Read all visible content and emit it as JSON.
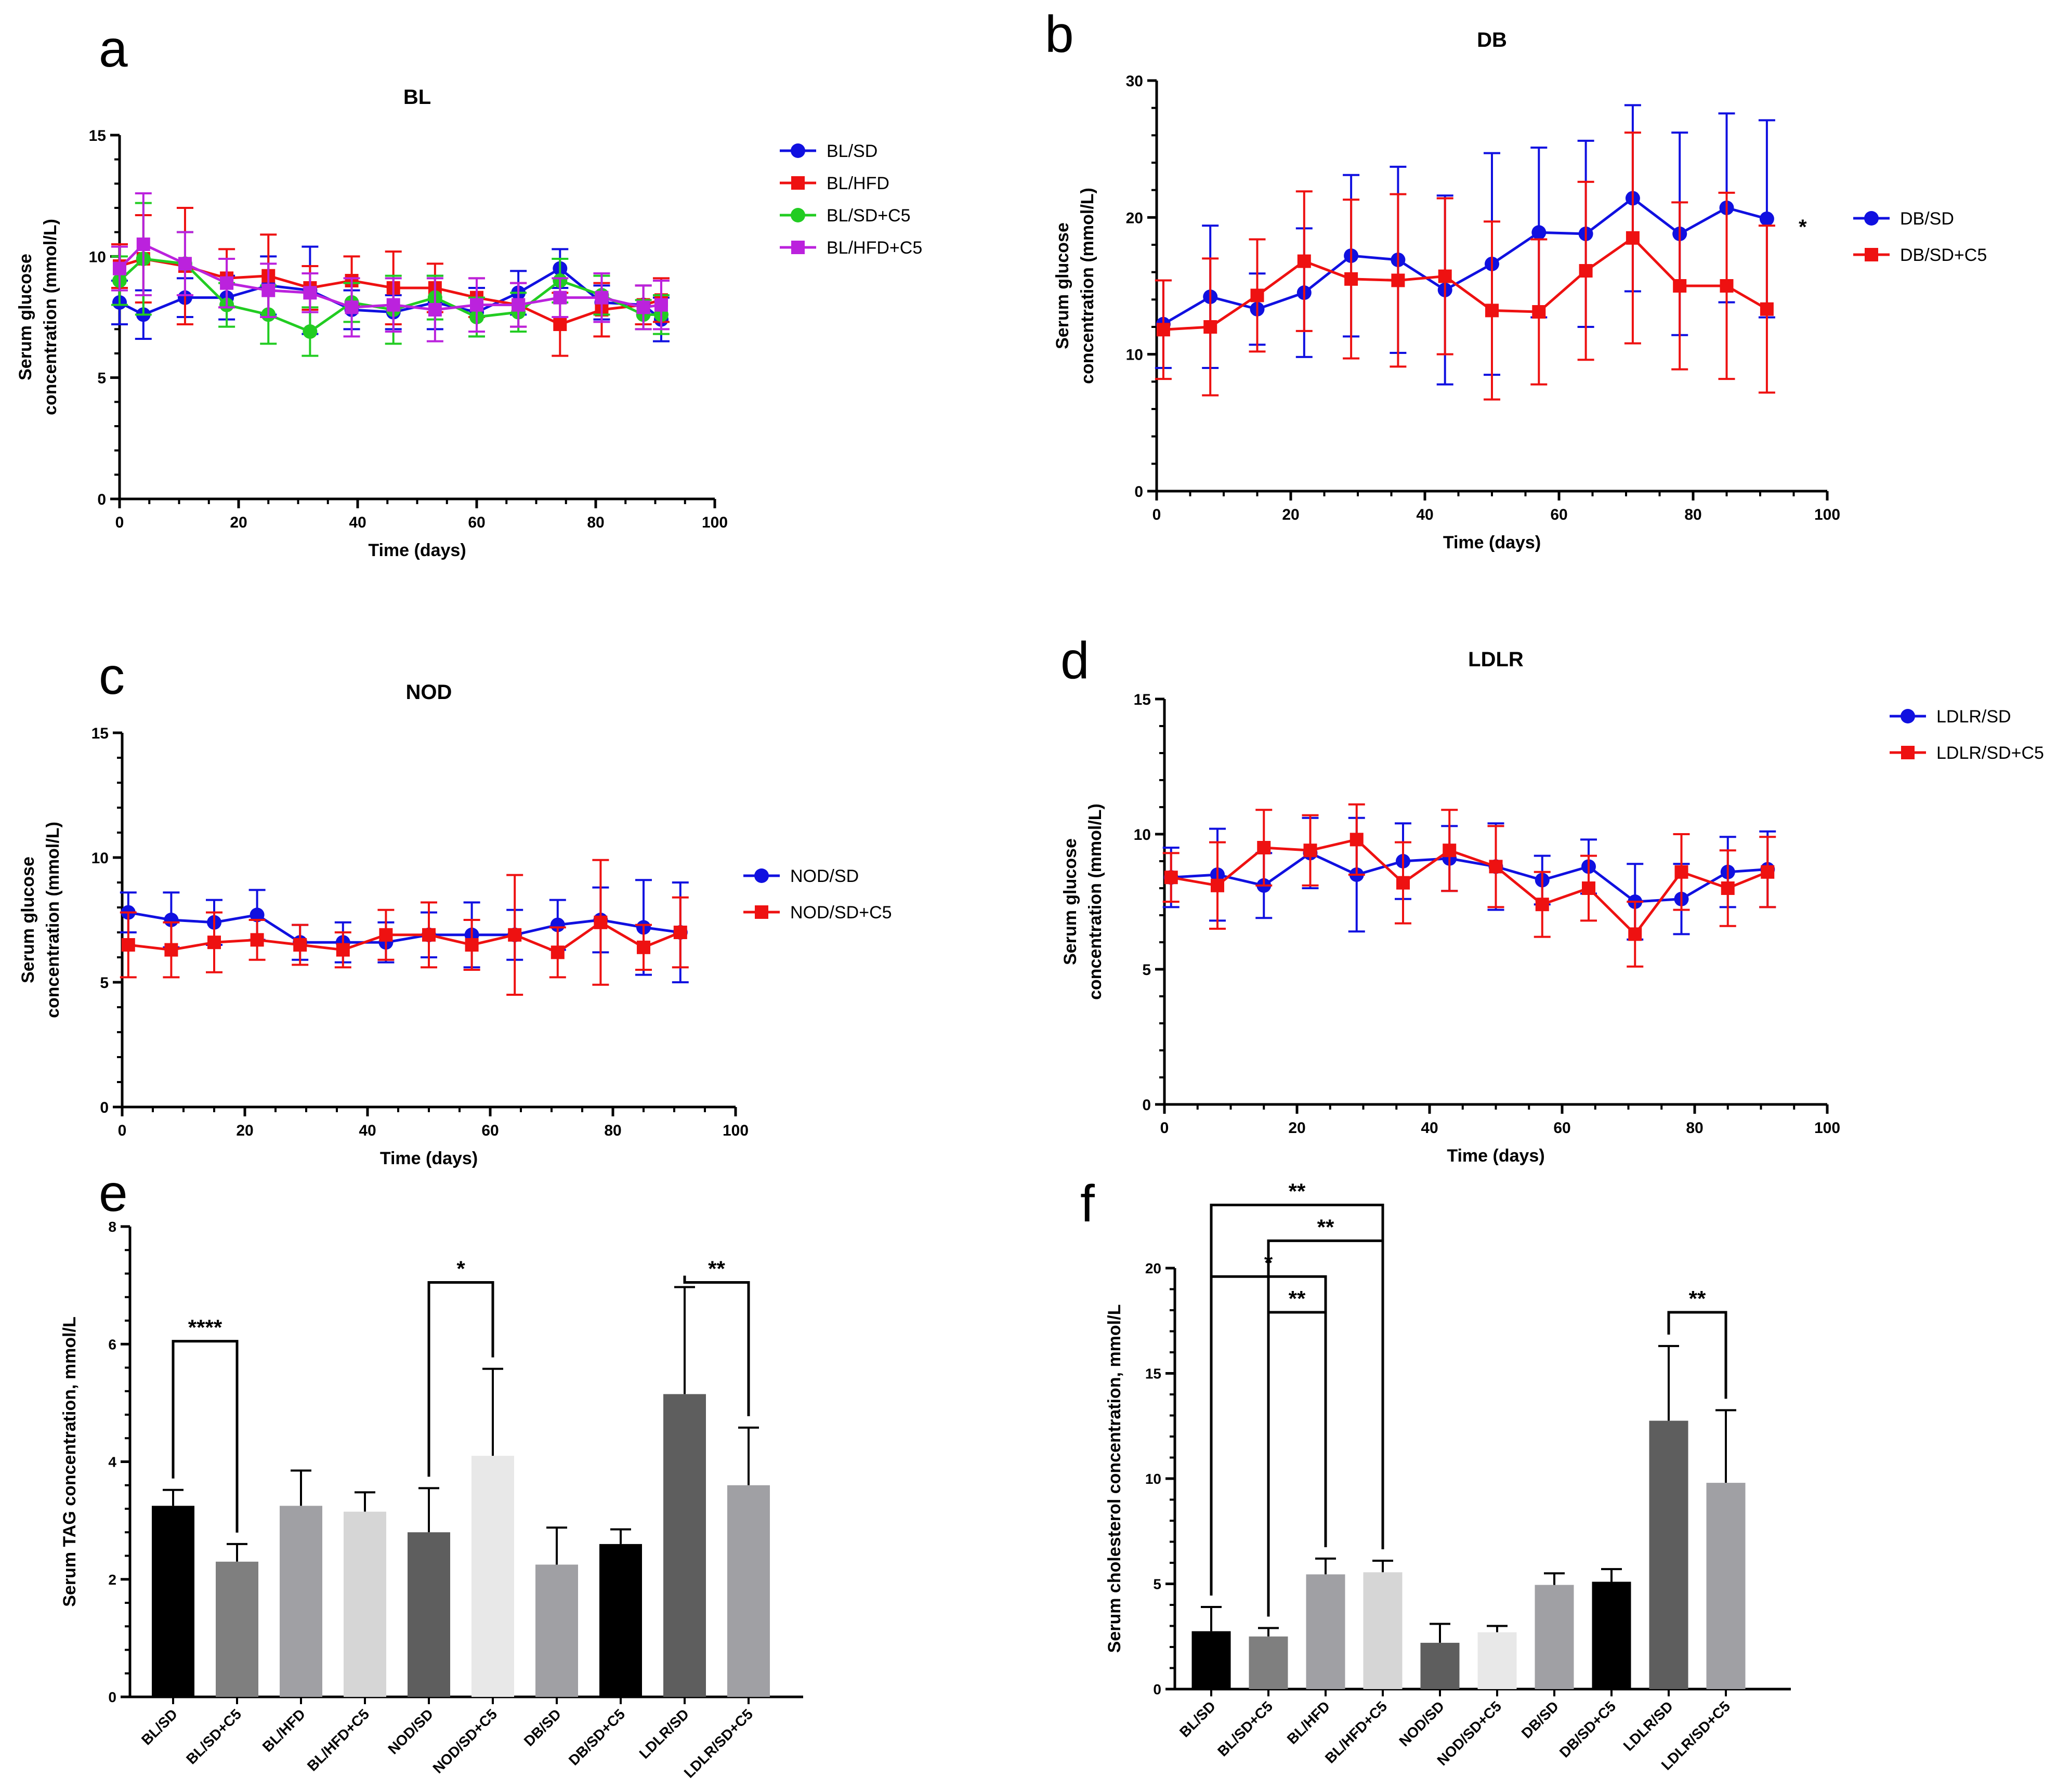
{
  "figure": {
    "panel_letters": [
      "a",
      "b",
      "c",
      "d",
      "e",
      "f"
    ]
  },
  "chart_data": [
    {
      "panel": "a",
      "type": "line",
      "title": "BL",
      "xlabel": "Time (days)",
      "ylabel": "Serum glucose\nconcentration (mmol/L)",
      "xlim": [
        0,
        100
      ],
      "ylim": [
        0,
        15
      ],
      "xticks": [
        0,
        20,
        40,
        60,
        80,
        100
      ],
      "yticks": [
        0,
        5,
        10,
        15
      ],
      "significance": "",
      "series": [
        {
          "name": "BL/SD",
          "color": "#1010e0",
          "marker": "circle",
          "x": [
            0,
            4,
            11,
            18,
            25,
            32,
            39,
            46,
            53,
            60,
            67,
            74,
            81,
            88,
            91
          ],
          "y": [
            8.1,
            7.6,
            8.3,
            8.3,
            8.8,
            8.6,
            7.8,
            7.7,
            8.1,
            7.7,
            8.5,
            9.5,
            8.1,
            8.0,
            7.4
          ],
          "err": [
            0.9,
            1.0,
            0.8,
            0.9,
            1.2,
            1.8,
            0.8,
            0.7,
            1.1,
            1.0,
            0.9,
            0.8,
            0.7,
            0.8,
            0.9
          ]
        },
        {
          "name": "BL/HFD",
          "color": "#ee1111",
          "marker": "square",
          "x": [
            0,
            4,
            11,
            18,
            25,
            32,
            39,
            46,
            53,
            60,
            67,
            74,
            81,
            88,
            91
          ],
          "y": [
            9.6,
            9.9,
            9.6,
            9.1,
            9.2,
            8.7,
            9.0,
            8.7,
            8.7,
            8.3,
            8.0,
            7.2,
            7.8,
            8.0,
            8.2
          ],
          "err": [
            0.9,
            1.8,
            2.4,
            1.2,
            1.7,
            0.9,
            1.0,
            1.5,
            1.0,
            0.8,
            0.9,
            1.3,
            1.1,
            0.8,
            0.9
          ]
        },
        {
          "name": "BL/SD+C5",
          "color": "#22cc22",
          "marker": "circle",
          "x": [
            0,
            4,
            11,
            18,
            25,
            32,
            39,
            46,
            53,
            60,
            67,
            74,
            81,
            88,
            91
          ],
          "y": [
            9.0,
            9.9,
            9.7,
            8.0,
            7.6,
            6.9,
            8.1,
            7.8,
            8.3,
            7.5,
            7.7,
            9.0,
            8.4,
            7.6,
            7.6
          ],
          "err": [
            1.0,
            2.3,
            1.3,
            0.9,
            1.2,
            1.0,
            0.8,
            1.4,
            0.9,
            0.8,
            0.8,
            0.9,
            0.8,
            0.6,
            0.8
          ]
        },
        {
          "name": "BL/HFD+C5",
          "color": "#bb22dd",
          "marker": "square",
          "x": [
            0,
            4,
            11,
            18,
            25,
            32,
            39,
            46,
            53,
            60,
            67,
            74,
            81,
            88,
            91
          ],
          "y": [
            9.5,
            10.5,
            9.7,
            8.9,
            8.6,
            8.5,
            7.9,
            8.0,
            7.8,
            8.0,
            8.0,
            8.3,
            8.3,
            7.9,
            8.0
          ],
          "err": [
            0.9,
            2.1,
            1.3,
            1.0,
            1.1,
            0.8,
            1.2,
            1.1,
            1.3,
            1.1,
            0.9,
            0.8,
            1.0,
            0.9,
            1.0
          ]
        }
      ]
    },
    {
      "panel": "b",
      "type": "line",
      "title": "DB",
      "xlabel": "Time (days)",
      "ylabel": "Serum glucose\nconcentration (mmol/L)",
      "xlim": [
        0,
        100
      ],
      "ylim": [
        0,
        30
      ],
      "xticks": [
        0,
        20,
        40,
        60,
        80,
        100
      ],
      "yticks": [
        0,
        10,
        20,
        30
      ],
      "significance": "*",
      "series": [
        {
          "name": "DB/SD",
          "color": "#1010e0",
          "marker": "circle",
          "x": [
            1,
            8,
            15,
            22,
            29,
            36,
            43,
            50,
            57,
            64,
            71,
            78,
            85,
            91
          ],
          "y": [
            12.2,
            14.2,
            13.3,
            14.5,
            17.2,
            16.9,
            14.7,
            16.6,
            18.9,
            18.8,
            21.4,
            18.8,
            20.7,
            19.9
          ],
          "err": [
            3.2,
            5.2,
            2.6,
            4.7,
            5.9,
            6.8,
            6.9,
            8.1,
            6.2,
            6.8,
            6.8,
            7.4,
            6.9,
            7.2
          ]
        },
        {
          "name": "DB/SD+C5",
          "color": "#ee1111",
          "marker": "square",
          "x": [
            1,
            8,
            15,
            22,
            29,
            36,
            43,
            50,
            57,
            64,
            71,
            78,
            85,
            91
          ],
          "y": [
            11.8,
            12.0,
            14.3,
            16.8,
            15.5,
            15.4,
            15.7,
            13.2,
            13.1,
            16.1,
            18.5,
            15.0,
            15.0,
            13.3
          ],
          "err": [
            3.6,
            5.0,
            4.1,
            5.1,
            5.8,
            6.3,
            5.7,
            6.5,
            5.3,
            6.5,
            7.7,
            6.1,
            6.8,
            6.1
          ]
        }
      ]
    },
    {
      "panel": "c",
      "type": "line",
      "title": "NOD",
      "xlabel": "Time (days)",
      "ylabel": "Serum glucose\nconcentration (mmol/L)",
      "xlim": [
        0,
        100
      ],
      "ylim": [
        0,
        15
      ],
      "xticks": [
        0,
        20,
        40,
        60,
        80,
        100
      ],
      "yticks": [
        0,
        5,
        10,
        15
      ],
      "significance": "",
      "series": [
        {
          "name": "NOD/SD",
          "color": "#1010e0",
          "marker": "circle",
          "x": [
            1,
            8,
            15,
            22,
            29,
            36,
            43,
            50,
            57,
            64,
            71,
            78,
            85,
            91
          ],
          "y": [
            7.8,
            7.5,
            7.4,
            7.7,
            6.6,
            6.6,
            6.6,
            6.9,
            6.9,
            6.9,
            7.3,
            7.5,
            7.2,
            7.0
          ],
          "err": [
            0.8,
            1.1,
            0.9,
            1.0,
            0.7,
            0.8,
            0.8,
            0.9,
            1.3,
            1.0,
            1.0,
            1.3,
            1.9,
            2.0
          ]
        },
        {
          "name": "NOD/SD+C5",
          "color": "#ee1111",
          "marker": "square",
          "x": [
            1,
            8,
            15,
            22,
            29,
            36,
            43,
            50,
            57,
            64,
            71,
            78,
            85,
            91
          ],
          "y": [
            6.5,
            6.3,
            6.6,
            6.7,
            6.5,
            6.3,
            6.9,
            6.9,
            6.5,
            6.9,
            6.2,
            7.4,
            6.4,
            7.0
          ],
          "err": [
            1.3,
            1.1,
            1.2,
            0.8,
            0.8,
            0.7,
            1.0,
            1.3,
            1.0,
            2.4,
            1.0,
            2.5,
            0.9,
            1.4
          ]
        }
      ]
    },
    {
      "panel": "d",
      "type": "line",
      "title": "LDLR",
      "xlabel": "Time (days)",
      "ylabel": "Serum glucose\nconcentration (mmol/L)",
      "xlim": [
        0,
        100
      ],
      "ylim": [
        0,
        15
      ],
      "xticks": [
        0,
        20,
        40,
        60,
        80,
        100
      ],
      "yticks": [
        0,
        5,
        10,
        15
      ],
      "significance": "",
      "series": [
        {
          "name": "LDLR/SD",
          "color": "#1010e0",
          "marker": "circle",
          "x": [
            1,
            8,
            15,
            22,
            29,
            36,
            43,
            50,
            57,
            64,
            71,
            78,
            85,
            91
          ],
          "y": [
            8.4,
            8.5,
            8.1,
            9.3,
            8.5,
            9.0,
            9.1,
            8.8,
            8.3,
            8.8,
            7.5,
            7.6,
            8.6,
            8.7
          ],
          "err": [
            1.1,
            1.7,
            1.2,
            1.3,
            2.1,
            1.4,
            1.2,
            1.6,
            0.9,
            1.0,
            1.4,
            1.3,
            1.3,
            1.4
          ]
        },
        {
          "name": "LDLR/SD+C5",
          "color": "#ee1111",
          "marker": "square",
          "x": [
            1,
            8,
            15,
            22,
            29,
            36,
            43,
            50,
            57,
            64,
            71,
            78,
            85,
            91
          ],
          "y": [
            8.4,
            8.1,
            9.5,
            9.4,
            9.8,
            8.2,
            9.4,
            8.8,
            7.4,
            8.0,
            6.3,
            8.6,
            8.0,
            8.6
          ],
          "err": [
            0.9,
            1.6,
            1.4,
            1.3,
            1.3,
            1.5,
            1.5,
            1.5,
            1.2,
            1.2,
            1.2,
            1.4,
            1.4,
            1.3
          ]
        }
      ]
    },
    {
      "panel": "e",
      "type": "bar",
      "title": "",
      "xlabel": "",
      "ylabel": "Serum TAG concentration, mmol/L",
      "ylim": [
        0,
        8
      ],
      "yticks": [
        0,
        2,
        4,
        6,
        8
      ],
      "categories": [
        "BL/SD",
        "BL/SD+C5",
        "BL/HFD",
        "BL/HFD+C5",
        "NOD/SD",
        "NOD/SD+C5",
        "DB/SD",
        "DB/SD+C5",
        "LDLR/SD",
        "LDLR/SD+C5"
      ],
      "values": [
        3.25,
        2.3,
        3.25,
        3.15,
        2.8,
        4.1,
        2.25,
        2.6,
        5.15,
        3.6
      ],
      "errors": [
        0.27,
        0.3,
        0.6,
        0.33,
        0.75,
        1.48,
        0.63,
        0.25,
        1.82,
        0.98
      ],
      "colors": [
        "#000000",
        "#7f7f7f",
        "#a0a0a4",
        "#d6d6d6",
        "#5e5e5e",
        "#e8e8e8",
        "#a0a0a4",
        "#000000",
        "#5e5e5e",
        "#a0a0a4"
      ],
      "comparisons": [
        {
          "from": 0,
          "to": 1,
          "y": 6.05,
          "label": "****"
        },
        {
          "from": 4,
          "to": 5,
          "y": 7.05,
          "label": "*"
        },
        {
          "from": 8,
          "to": 9,
          "y": 7.05,
          "label": "**"
        }
      ]
    },
    {
      "panel": "f",
      "type": "bar",
      "title": "",
      "xlabel": "",
      "ylabel": "Serum cholesterol concentration, mmol/L",
      "ylim": [
        0,
        20
      ],
      "yticks": [
        0,
        5,
        10,
        15,
        20
      ],
      "categories": [
        "BL/SD",
        "BL/SD+C5",
        "BL/HFD",
        "BL/HFD+C5",
        "NOD/SD",
        "NOD/SD+C5",
        "DB/SD",
        "DB/SD+C5",
        "LDLR/SD",
        "LDLR/SD+C5"
      ],
      "values": [
        2.75,
        2.5,
        5.45,
        5.55,
        2.2,
        2.7,
        4.95,
        5.1,
        12.75,
        9.8
      ],
      "errors": [
        1.15,
        0.4,
        0.75,
        0.55,
        0.9,
        0.3,
        0.55,
        0.6,
        3.55,
        3.45
      ],
      "colors": [
        "#000000",
        "#7f7f7f",
        "#a0a0a4",
        "#d6d6d6",
        "#5e5e5e",
        "#e8e8e8",
        "#a0a0a4",
        "#000000",
        "#5e5e5e",
        "#a0a0a4"
      ],
      "comparisons": [
        {
          "from": 0,
          "to": 3,
          "y": 23.0,
          "label": "**"
        },
        {
          "from": 1,
          "to": 3,
          "y": 21.3,
          "label": "**"
        },
        {
          "from": 0,
          "to": 2,
          "y": 19.6,
          "label": "*"
        },
        {
          "from": 1,
          "to": 2,
          "y": 17.9,
          "label": "**"
        },
        {
          "from": 8,
          "to": 9,
          "y": 17.9,
          "label": "**"
        }
      ]
    }
  ]
}
